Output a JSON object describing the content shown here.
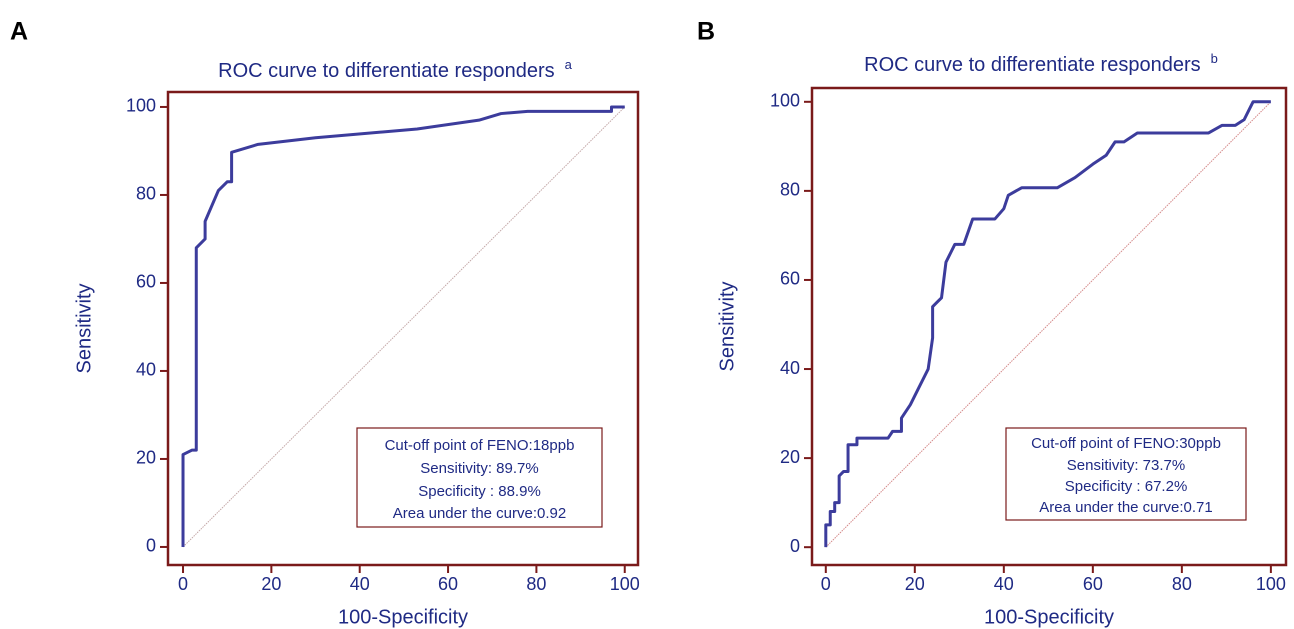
{
  "chart_data": [
    {
      "type": "line",
      "panel_label": "A",
      "title": "ROC curve to differentiate responders",
      "title_superscript": "a",
      "xlabel": "100-Specificity",
      "ylabel": "Sensitivity",
      "x": [
        0,
        0,
        2,
        3,
        3,
        5,
        5,
        8,
        10,
        11,
        11,
        17,
        30,
        53,
        67,
        72,
        78,
        97,
        97,
        100
      ],
      "values": [
        0,
        21,
        22,
        22,
        68,
        70,
        74,
        81,
        83,
        83,
        89.7,
        91.5,
        93,
        95,
        97,
        98.5,
        99,
        99,
        100,
        100
      ],
      "color": "#3c3c9c",
      "frame_color": "#7a1a1a",
      "reference_line": {
        "x": [
          0,
          100
        ],
        "y": [
          0,
          100
        ],
        "color": "#c4a8a8"
      },
      "xlim": [
        -3.4,
        103
      ],
      "ylim": [
        -4.1,
        103.4
      ],
      "xticks": [
        0,
        20,
        40,
        60,
        80,
        100
      ],
      "yticks": [
        0,
        20,
        40,
        60,
        80,
        100
      ],
      "annotation": [
        "Cut-off point of FENO:18ppb",
        "Sensitivity: 89.7%",
        "Specificity : 88.9%",
        "Area under the curve:0.92"
      ]
    },
    {
      "type": "line",
      "panel_label": "B",
      "title": "ROC curve to differentiate responders",
      "title_superscript": "b",
      "xlabel": "100-Specificity",
      "ylabel": "Sensitivity",
      "x": [
        0,
        0,
        1,
        1,
        2,
        2,
        3,
        3,
        4,
        5,
        5,
        7,
        7,
        14,
        15,
        17,
        17,
        19,
        21,
        23,
        24,
        24,
        25,
        26,
        27,
        28,
        29,
        31,
        33,
        38,
        40,
        41,
        44,
        52,
        56,
        60,
        63,
        65,
        67,
        70,
        86,
        89,
        92,
        94,
        95,
        96,
        100
      ],
      "values": [
        0,
        5,
        5,
        8,
        8,
        10,
        10,
        16,
        17,
        17,
        23,
        23,
        24.5,
        24.5,
        26,
        26,
        29,
        32,
        36,
        40,
        47,
        54,
        55,
        56,
        64,
        66,
        68,
        68,
        73.7,
        73.7,
        76,
        79,
        80.7,
        80.7,
        83,
        86,
        88,
        91,
        91,
        93,
        93,
        94.7,
        94.7,
        96,
        98,
        100,
        100
      ],
      "color": "#3c3c9c",
      "frame_color": "#7a1a1a",
      "reference_line": {
        "x": [
          0,
          100
        ],
        "y": [
          0,
          100
        ],
        "color": "#d48888"
      },
      "xlim": [
        -3.1,
        103.4
      ],
      "ylim": [
        -4,
        103.1
      ],
      "xticks": [
        0,
        20,
        40,
        60,
        80,
        100
      ],
      "yticks": [
        0,
        20,
        40,
        60,
        80,
        100
      ],
      "annotation": [
        "Cut-off point of FENO:30ppb",
        "Sensitivity: 73.7%",
        "Specificity : 67.2%",
        "Area under the curve:0.71"
      ]
    }
  ]
}
